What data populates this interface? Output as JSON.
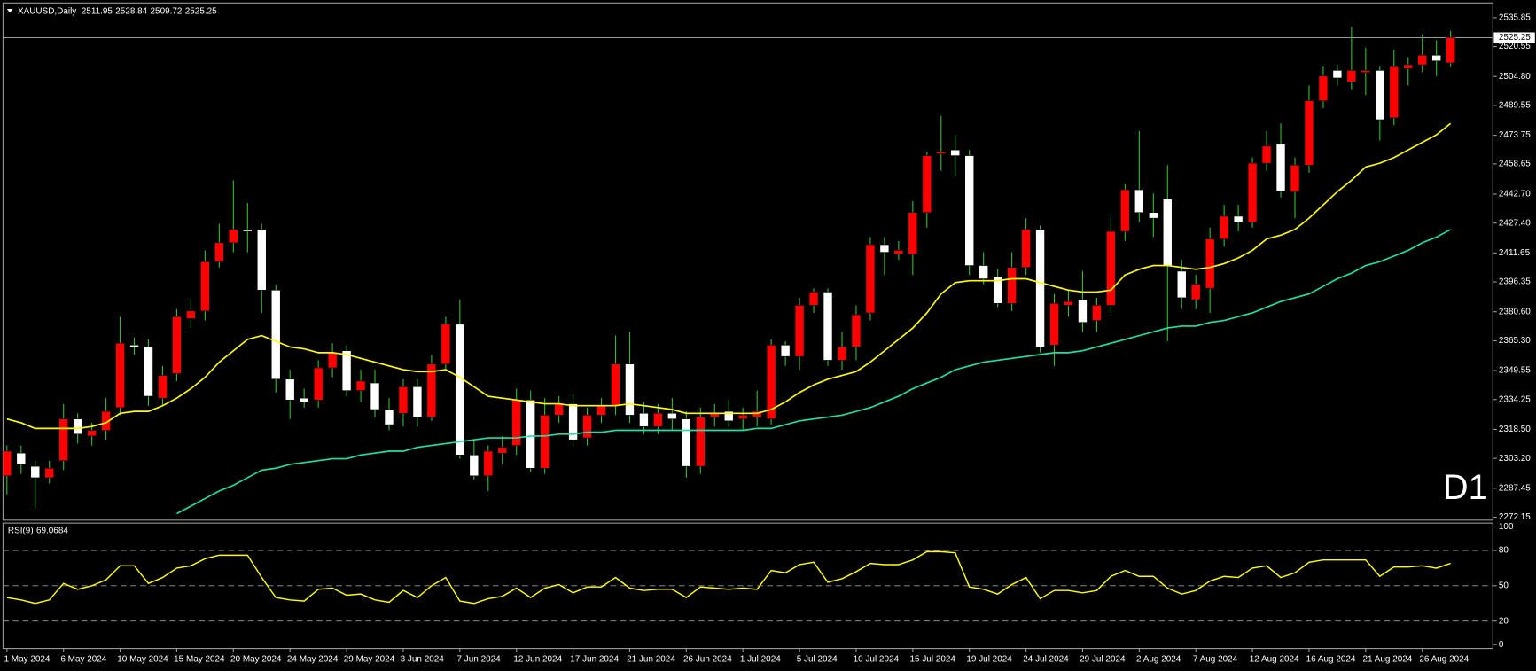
{
  "chart_data": [
    {
      "type": "candlestick",
      "title": "XAUUSD,Daily",
      "label": "D1",
      "categories": [
        "1 May 2024",
        null,
        null,
        null,
        "6 May 2024",
        null,
        null,
        null,
        "10 May 2024",
        null,
        null,
        null,
        "15 May 2024",
        null,
        null,
        null,
        "20 May 2024",
        null,
        null,
        null,
        "24 May 2024",
        null,
        null,
        null,
        "29 May 2024",
        null,
        null,
        null,
        "3 Jun 2024",
        null,
        null,
        null,
        "7 Jun 2024",
        null,
        null,
        null,
        "12 Jun 2024",
        null,
        null,
        null,
        "17 Jun 2024",
        null,
        null,
        null,
        "21 Jun 2024",
        null,
        null,
        null,
        "26 Jun 2024",
        null,
        null,
        null,
        "1 Jul 2024",
        null,
        null,
        null,
        "5 Jul 2024",
        null,
        null,
        null,
        "10 Jul 2024",
        null,
        null,
        null,
        "15 Jul 2024",
        null,
        null,
        null,
        "19 Jul 2024",
        null,
        null,
        null,
        "24 Jul 2024",
        null,
        null,
        null,
        "29 Jul 2024",
        null,
        null,
        null,
        "2 Aug 2024",
        null,
        null,
        null,
        "7 Aug 2024",
        null,
        null,
        null,
        "12 Aug 2024",
        null,
        null,
        null,
        "16 Aug 2024",
        null,
        null,
        null,
        "21 Aug 2024",
        null,
        null,
        null,
        "26 Aug 2024",
        null,
        null
      ],
      "open": [
        2294,
        2306,
        2299,
        2293,
        2302,
        2324,
        2315,
        2318,
        2330,
        2363,
        2362,
        2335,
        2348,
        2377,
        2381,
        2407,
        2417,
        2424,
        2424,
        2392,
        2345,
        2335,
        2334,
        2351,
        2360,
        2339,
        2343,
        2329,
        2327,
        2341,
        2325,
        2353,
        2374,
        2305,
        2294,
        2306,
        2310,
        2334,
        2298,
        2326,
        2332,
        2314,
        2326,
        2331,
        2353,
        2327,
        2320,
        2327,
        2324,
        2299,
        2325,
        2328,
        2324,
        2325,
        2324,
        2363,
        2357,
        2384,
        2391,
        2355,
        2362,
        2380,
        2416,
        2411,
        2411,
        2433,
        2464,
        2466,
        2463,
        2405,
        2399,
        2385,
        2404,
        2424,
        2363,
        2384,
        2387,
        2376,
        2384,
        2423,
        2445,
        2433,
        2440,
        2402,
        2387,
        2393,
        2419,
        2431,
        2428,
        2459,
        2469,
        2444,
        2458,
        2492,
        2508,
        2502,
        2507,
        2508,
        2483,
        2509,
        2511,
        2516,
        2511.95
      ],
      "high": [
        2310,
        2310,
        2302,
        2302,
        2332,
        2327,
        2322,
        2335,
        2378,
        2367,
        2366,
        2352,
        2382,
        2387,
        2413,
        2427,
        2450,
        2438,
        2427,
        2395,
        2350,
        2340,
        2355,
        2364,
        2363,
        2350,
        2350,
        2335,
        2345,
        2345,
        2358,
        2378,
        2387,
        2313,
        2310,
        2315,
        2340,
        2339,
        2335,
        2336,
        2337,
        2330,
        2335,
        2368,
        2370,
        2333,
        2332,
        2335,
        2328,
        2330,
        2332,
        2334,
        2330,
        2339,
        2366,
        2365,
        2388,
        2393,
        2393,
        2370,
        2384,
        2420,
        2420,
        2418,
        2439,
        2465,
        2484,
        2474,
        2466,
        2412,
        2403,
        2412,
        2430,
        2426,
        2390,
        2392,
        2402,
        2388,
        2430,
        2448,
        2476,
        2443,
        2458,
        2408,
        2400,
        2425,
        2437,
        2437,
        2462,
        2476,
        2480,
        2462,
        2500,
        2510,
        2511,
        2531,
        2520,
        2510,
        2519,
        2515,
        2527,
        2524,
        2528.84
      ],
      "low": [
        2284,
        2295,
        2277,
        2290,
        2297,
        2311,
        2310,
        2313,
        2326,
        2358,
        2331,
        2331,
        2344,
        2372,
        2376,
        2404,
        2412,
        2412,
        2380,
        2338,
        2324,
        2330,
        2330,
        2346,
        2336,
        2333,
        2325,
        2318,
        2320,
        2320,
        2323,
        2350,
        2303,
        2292,
        2286,
        2300,
        2305,
        2296,
        2295,
        2322,
        2310,
        2310,
        2322,
        2326,
        2322,
        2316,
        2316,
        2318,
        2293,
        2295,
        2320,
        2320,
        2318,
        2320,
        2321,
        2352,
        2350,
        2380,
        2352,
        2350,
        2355,
        2376,
        2400,
        2408,
        2400,
        2425,
        2455,
        2452,
        2400,
        2395,
        2383,
        2381,
        2400,
        2359,
        2352,
        2378,
        2370,
        2370,
        2380,
        2418,
        2428,
        2420,
        2365,
        2382,
        2382,
        2380,
        2415,
        2423,
        2425,
        2455,
        2441,
        2430,
        2454,
        2488,
        2500,
        2498,
        2495,
        2471,
        2479,
        2500,
        2507,
        2505,
        2509.72
      ],
      "close": [
        2307,
        2300,
        2293,
        2298,
        2324,
        2316,
        2318,
        2328,
        2364,
        2362,
        2336,
        2347,
        2378,
        2381,
        2407,
        2417,
        2424,
        2423,
        2392,
        2345,
        2334,
        2333,
        2351,
        2359,
        2339,
        2344,
        2329,
        2321,
        2341,
        2325,
        2353,
        2374,
        2305,
        2294,
        2307,
        2309,
        2334,
        2298,
        2326,
        2332,
        2313,
        2326,
        2331,
        2353,
        2326,
        2320,
        2327,
        2324,
        2299,
        2325,
        2327,
        2323,
        2326,
        2328,
        2363,
        2357,
        2384,
        2391,
        2355,
        2362,
        2379,
        2416,
        2412,
        2413,
        2433,
        2463,
        2465,
        2463,
        2405,
        2398,
        2385,
        2404,
        2424,
        2362,
        2385,
        2386,
        2375,
        2384,
        2423,
        2445,
        2433,
        2430,
        2405,
        2388,
        2395,
        2419,
        2431,
        2428,
        2459,
        2468,
        2444,
        2458,
        2492,
        2505,
        2504,
        2508,
        2508,
        2482,
        2510,
        2511,
        2516,
        2513,
        2525.25
      ],
      "up_color": "#ff0000",
      "down_color": "#ffffff",
      "wick_color": "#2fbf2f",
      "label_color": "#e00000",
      "overlays": [
        {
          "color": "#ffff00",
          "values": [
            2324,
            2322,
            2319,
            2319,
            2319,
            2319,
            2320,
            2322,
            2327,
            2328,
            2328,
            2331,
            2335,
            2340,
            2346,
            2354,
            2360,
            2366,
            2368,
            2365,
            2362,
            2361,
            2359,
            2359,
            2358,
            2356,
            2354,
            2352,
            2350,
            2349,
            2349,
            2350,
            2346,
            2341,
            2336,
            2335,
            2334,
            2333,
            2332,
            2332,
            2331,
            2331,
            2331,
            2331,
            2332,
            2331,
            2330,
            2329,
            2327,
            2327,
            2327,
            2327,
            2327,
            2327,
            2329,
            2333,
            2338,
            2342,
            2345,
            2347,
            2349,
            2354,
            2360,
            2366,
            2372,
            2380,
            2390,
            2396,
            2397,
            2397,
            2397,
            2398,
            2398,
            2396,
            2394,
            2392,
            2391,
            2391,
            2392,
            2400,
            2403,
            2405,
            2405,
            2404,
            2403,
            2404,
            2406,
            2409,
            2413,
            2419,
            2421,
            2424,
            2430,
            2437,
            2444,
            2450,
            2457,
            2459,
            2462,
            2466,
            2470,
            2474,
            2480
          ]
        },
        {
          "color": "#20e0a8",
          "values": [
            null,
            null,
            null,
            null,
            null,
            null,
            null,
            null,
            null,
            null,
            null,
            null,
            2274,
            2278,
            2282,
            2286,
            2289,
            2293,
            2297,
            2298,
            2300,
            2301,
            2302,
            2303,
            2303,
            2305,
            2306,
            2307,
            2307,
            2309,
            2310,
            2311,
            2312,
            2313,
            2314,
            2314,
            2314,
            2315,
            2315,
            2316,
            2316,
            2317,
            2317,
            2318,
            2318,
            2318,
            2318,
            2318,
            2318,
            2318,
            2318,
            2318,
            2318,
            2319,
            2319,
            2321,
            2323,
            2324,
            2325,
            2326,
            2328,
            2330,
            2333,
            2336,
            2340,
            2343,
            2346,
            2350,
            2352,
            2354,
            2355,
            2356,
            2357,
            2358,
            2359,
            2359,
            2360,
            2362,
            2364,
            2366,
            2368,
            2370,
            2372,
            2373,
            2373,
            2375,
            2376,
            2378,
            2380,
            2383,
            2386,
            2388,
            2390,
            2394,
            2398,
            2401,
            2405,
            2407,
            2410,
            2413,
            2417,
            2420,
            2424
          ]
        }
      ],
      "ylim": [
        2270.6,
        2543.6
      ],
      "yticks": [
        2535.85,
        2520.55,
        {
          "value": 2504.8,
          "label": "2504.80"
        },
        2489.55,
        2473.75,
        2458.65,
        {
          "value": 2442.7,
          "label": "2442.70"
        },
        {
          "value": 2427.4,
          "label": "2427.40"
        },
        2411.65,
        2396.35,
        {
          "value": 2380.6,
          "label": "2380.60"
        },
        {
          "value": 2365.3,
          "label": "2365.30"
        },
        2349.55,
        2334.25,
        {
          "value": 2318.5,
          "label": "2318.50"
        },
        {
          "value": 2303.2,
          "label": "2303.20"
        },
        2287.45,
        2272.15
      ]
    },
    {
      "type": "line",
      "title": "RSI(9)",
      "color": "#ffff00",
      "values": [
        40,
        38,
        35,
        38,
        52,
        47,
        50,
        55,
        67,
        67,
        52,
        57,
        65,
        67,
        73,
        76,
        76,
        76,
        57,
        40,
        38,
        37,
        47,
        48,
        42,
        43,
        38,
        36,
        46,
        40,
        50,
        57,
        37,
        35,
        39,
        41,
        48,
        40,
        48,
        51,
        44,
        49,
        49,
        57,
        48,
        46,
        47,
        47,
        40,
        49,
        48,
        47,
        48,
        47,
        63,
        61,
        68,
        70,
        53,
        56,
        62,
        69,
        68,
        68,
        72,
        79,
        79,
        78,
        49,
        47,
        43,
        51,
        57,
        39,
        46,
        46,
        44,
        46,
        58,
        63,
        58,
        58,
        48,
        43,
        46,
        54,
        58,
        57,
        65,
        67,
        57,
        61,
        70,
        72,
        72,
        72,
        72,
        58,
        66,
        66,
        67,
        65,
        69.0684
      ],
      "ylim": [
        -3.3,
        103.3
      ],
      "yticks": [
        100,
        80,
        50,
        20,
        0
      ],
      "levels": [
        80,
        50,
        20
      ]
    }
  ]
}
